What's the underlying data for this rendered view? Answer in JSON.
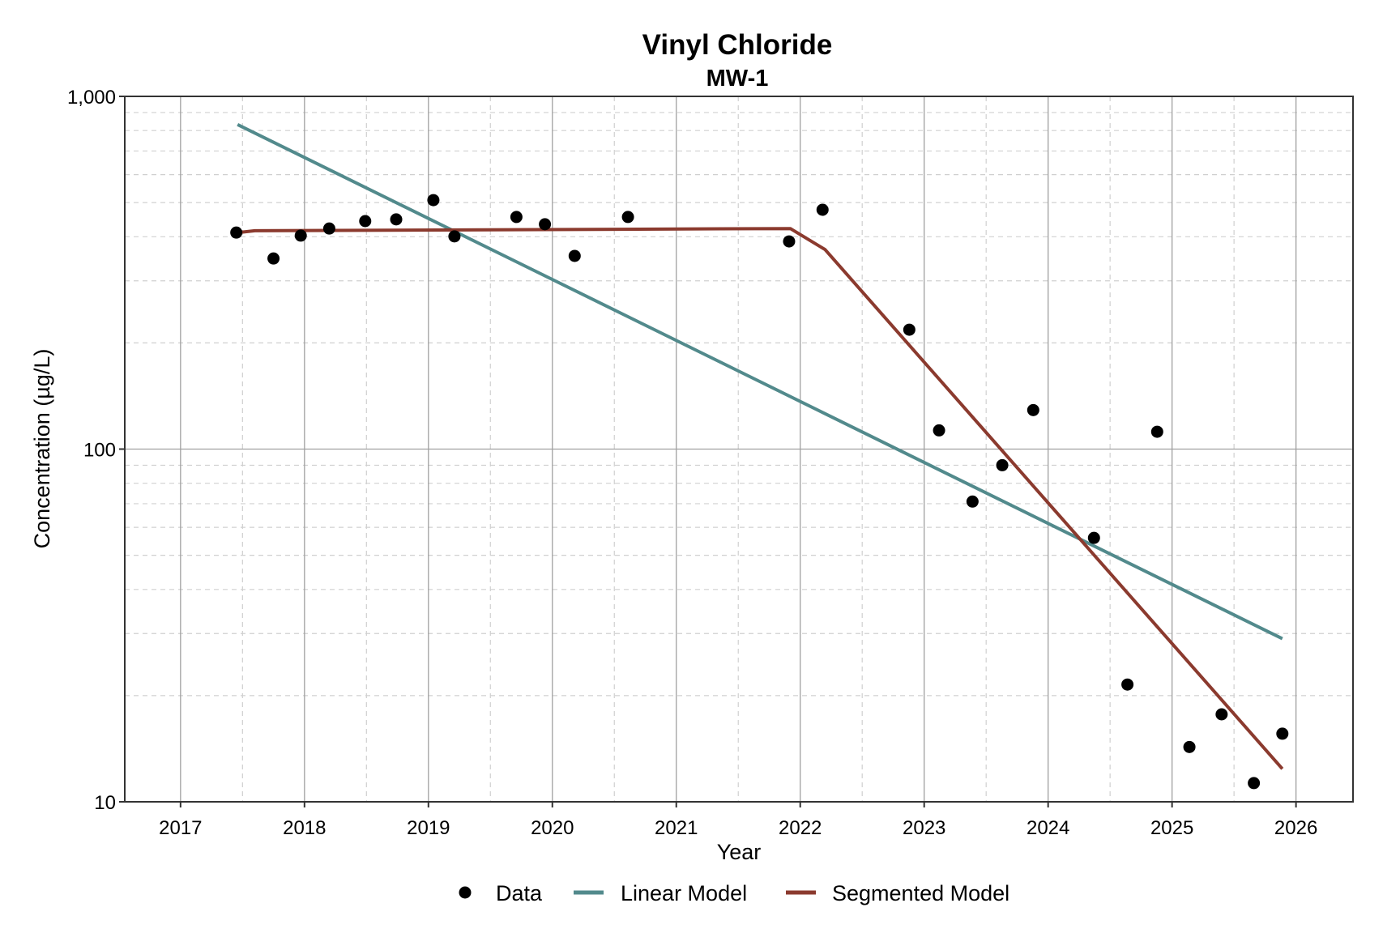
{
  "chart_data": {
    "type": "scatter",
    "title": "Vinyl Chloride",
    "subtitle": "MW-1",
    "xlabel": "Year",
    "ylabel": "Concentration (µg/L)",
    "xscale": "linear",
    "yscale": "log",
    "xlim": [
      2016.55,
      2026.46
    ],
    "ylim": [
      10,
      1000
    ],
    "x_ticks": [
      2017,
      2018,
      2019,
      2020,
      2021,
      2022,
      2023,
      2024,
      2025,
      2026
    ],
    "x_tick_labels": [
      "2017",
      "2018",
      "2019",
      "2020",
      "2021",
      "2022",
      "2023",
      "2024",
      "2025",
      "2026"
    ],
    "y_ticks": [
      10,
      100,
      1000
    ],
    "y_tick_labels": [
      "10",
      "100",
      "1,000"
    ],
    "grid": true,
    "legend_position": "bottom",
    "legend": [
      {
        "label": "Data",
        "kind": "point",
        "color": "#000000"
      },
      {
        "label": "Linear Model",
        "kind": "line",
        "color": "#528a8c"
      },
      {
        "label": "Segmented Model",
        "kind": "line",
        "color": "#8b3a2e"
      }
    ],
    "series": [
      {
        "name": "Data",
        "type": "scatter",
        "color": "#000000",
        "x": [
          2017.45,
          2017.75,
          2017.97,
          2018.2,
          2018.49,
          2018.74,
          2019.04,
          2019.21,
          2019.71,
          2019.94,
          2020.18,
          2020.61,
          2021.91,
          2022.18,
          2022.88,
          2023.12,
          2023.39,
          2023.63,
          2023.88,
          2024.37,
          2024.64,
          2024.88,
          2025.14,
          2025.4,
          2025.66,
          2025.89
        ],
        "y": [
          411,
          347,
          403,
          422,
          443,
          448,
          508,
          401,
          455,
          434,
          353,
          455,
          388,
          477,
          218,
          113,
          71,
          90,
          129,
          56,
          21.5,
          112,
          14.3,
          17.7,
          11.3,
          15.6
        ]
      },
      {
        "name": "Linear Model",
        "type": "line",
        "color": "#528a8c",
        "x": [
          2017.46,
          2025.89
        ],
        "y": [
          832,
          29
        ]
      },
      {
        "name": "Segmented Model",
        "type": "line",
        "color": "#8b3a2e",
        "x": [
          2017.46,
          2017.6,
          2021.92,
          2022.2,
          2025.89
        ],
        "y": [
          411,
          416,
          422,
          368,
          12.4
        ]
      }
    ]
  }
}
